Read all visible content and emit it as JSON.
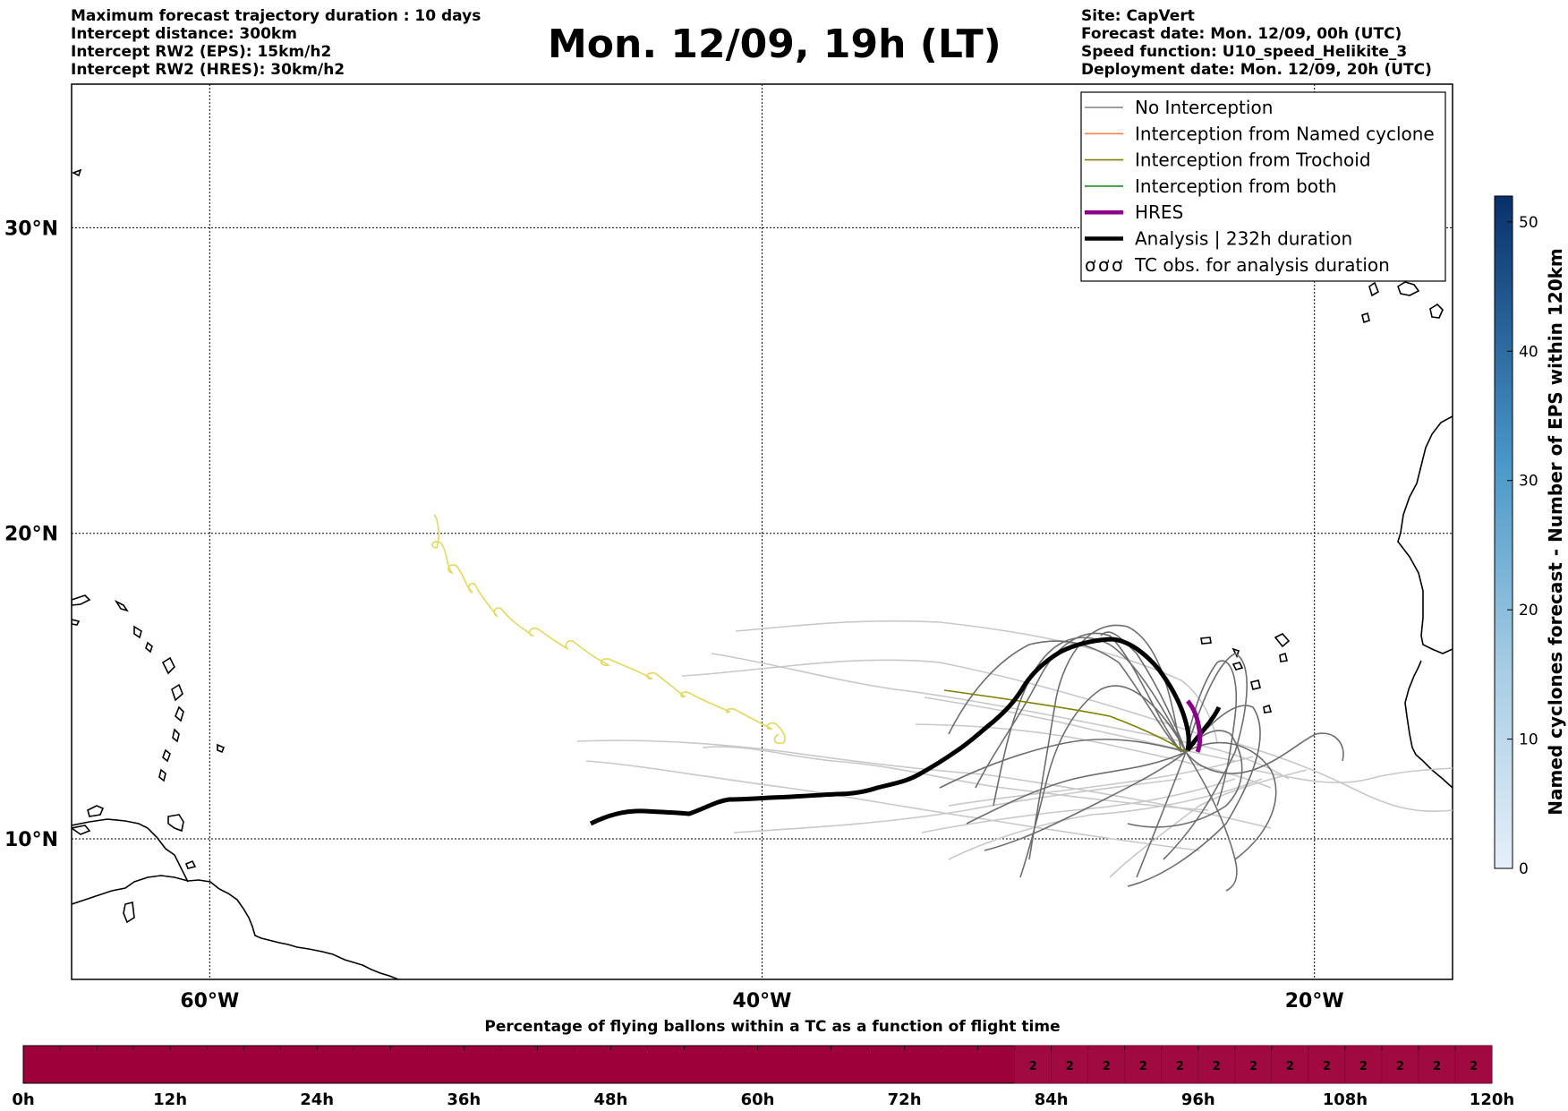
{
  "header": {
    "left": [
      "Maximum forecast trajectory duration : 10 days",
      "Intercept distance: 300km",
      "Intercept RW2 (EPS):  15km/h2",
      "Intercept RW2 (HRES): 30km/h2"
    ],
    "title": "Mon. 12/09, 19h (LT)",
    "right": [
      "Site: CapVert",
      "Forecast date: Mon. 12/09, 00h (UTC)",
      "Speed function: U10_speed_Helikite_3",
      "Deployment date: Mon. 12/09, 20h (UTC)"
    ]
  },
  "map": {
    "lat_labels": [
      "30°N",
      "20°N",
      "10°N"
    ],
    "lon_labels": [
      "60°W",
      "40°W",
      "20°W"
    ],
    "lat_values": [
      30,
      20,
      10
    ],
    "lon_values": [
      -60,
      -40,
      -20
    ],
    "extent": {
      "lon_min": -65,
      "lon_max": -15,
      "lat_min": 5.4,
      "lat_max": 34.7
    }
  },
  "legend": {
    "items": [
      {
        "label": "No Interception",
        "color": "#808080",
        "style": "thin"
      },
      {
        "label": "Interception from Named cyclone",
        "color": "#ff7f50",
        "style": "thin"
      },
      {
        "label": "Interception from Trochoid",
        "color": "#808000",
        "style": "thin"
      },
      {
        "label": "Interception from both",
        "color": "#228b22",
        "style": "thin"
      },
      {
        "label": "HRES",
        "color": "#8b008b",
        "style": "thick"
      },
      {
        "label": "Analysis | 232h duration",
        "color": "#000000",
        "style": "thick"
      },
      {
        "label": "TC obs. for analysis duration",
        "color": "#000000",
        "style": "cyclone"
      }
    ]
  },
  "colorbar": {
    "label": "Named cyclones forecast - Number of EPS within 120km",
    "ticks": [
      "0",
      "10",
      "20",
      "30",
      "40",
      "50"
    ],
    "min": 0,
    "max": 52,
    "color_low": "#e6eff9",
    "color_high": "#08306b"
  },
  "bottom_bar": {
    "title": "Percentage of flying ballons within a TC as a function of flight time",
    "tick_labels": [
      "0h",
      "12h",
      "24h",
      "36h",
      "48h",
      "60h",
      "72h",
      "84h",
      "96h",
      "108h",
      "120h"
    ],
    "bar_color": "#9e003a",
    "cells_total": 40,
    "labelled_cells": {
      "from": 27,
      "label": "2"
    }
  },
  "chart_data": {
    "type": "table",
    "title": "Percentage of flying ballons within a TC as a function of flight time",
    "x": [
      "0h",
      "12h",
      "24h",
      "36h",
      "48h",
      "60h",
      "72h",
      "84h",
      "96h",
      "108h",
      "120h"
    ],
    "values_after_81h": 2
  }
}
